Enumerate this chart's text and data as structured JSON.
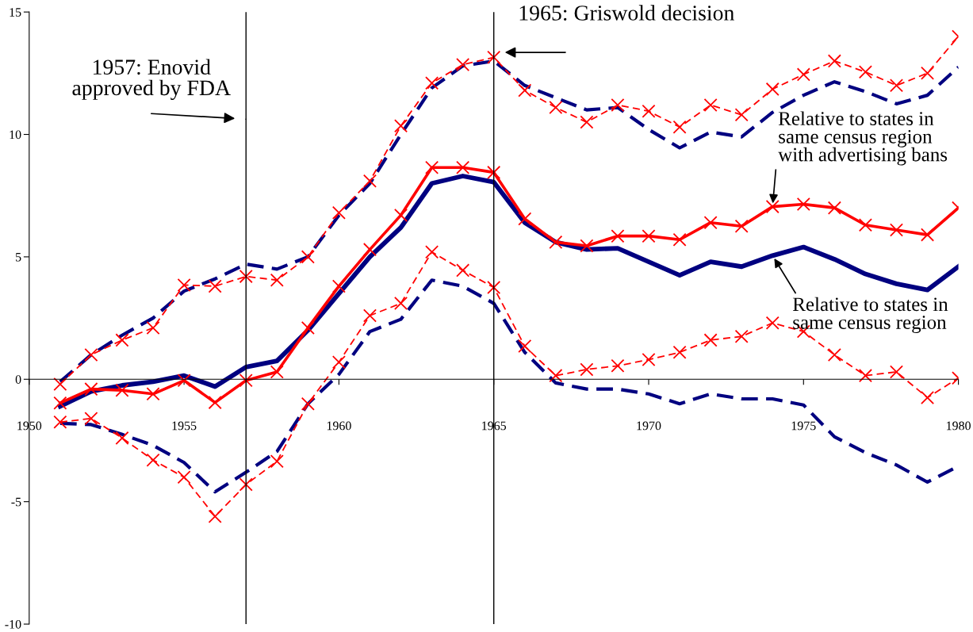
{
  "chart_data": {
    "type": "line",
    "x": [
      1951,
      1952,
      1953,
      1954,
      1955,
      1956,
      1957,
      1958,
      1959,
      1960,
      1961,
      1962,
      1963,
      1964,
      1965,
      1966,
      1967,
      1968,
      1969,
      1970,
      1971,
      1972,
      1973,
      1974,
      1975,
      1976,
      1977,
      1978,
      1979,
      1980
    ],
    "series": [
      {
        "color": "#000080",
        "line_style": "dashed",
        "marker": "none",
        "values": [
          -0.1,
          1.0,
          1.8,
          2.5,
          3.6,
          4.1,
          4.7,
          4.5,
          5.0,
          6.7,
          8.0,
          10.0,
          11.9,
          12.8,
          13.0,
          12.0,
          11.5,
          11.0,
          11.1,
          10.2,
          9.45,
          10.1,
          9.9,
          10.9,
          11.6,
          12.15,
          11.75,
          11.25,
          11.6,
          12.75
        ]
      },
      {
        "color": "#ff0000",
        "line_style": "dashed",
        "marker": "cross",
        "values": [
          -0.2,
          1.0,
          1.6,
          2.1,
          3.85,
          3.8,
          4.2,
          4.05,
          5.0,
          6.8,
          8.1,
          10.35,
          12.1,
          12.85,
          13.15,
          11.8,
          11.1,
          10.5,
          11.2,
          10.95,
          10.3,
          11.2,
          10.8,
          11.85,
          12.45,
          13.0,
          12.55,
          12.0,
          12.5,
          14.0
        ]
      },
      {
        "color": "#000080",
        "line_style": "solid",
        "marker": "none",
        "values": [
          -1.1,
          -0.5,
          -0.25,
          -0.1,
          0.15,
          -0.3,
          0.5,
          0.75,
          2.0,
          3.5,
          5.0,
          6.2,
          8.0,
          8.3,
          8.05,
          6.4,
          5.6,
          5.3,
          5.35,
          4.8,
          4.25,
          4.8,
          4.6,
          5.05,
          5.4,
          4.9,
          4.3,
          3.9,
          3.65,
          4.6
        ]
      },
      {
        "color": "#ff0000",
        "line_style": "solid",
        "marker": "cross",
        "values": [
          -0.97,
          -0.4,
          -0.45,
          -0.6,
          -0.05,
          -0.95,
          -0.05,
          0.3,
          2.1,
          3.8,
          5.3,
          6.7,
          8.65,
          8.65,
          8.45,
          6.55,
          5.6,
          5.45,
          5.85,
          5.85,
          5.7,
          6.4,
          6.25,
          7.05,
          7.15,
          7.0,
          6.3,
          6.1,
          5.9,
          7.0
        ]
      },
      {
        "color": "#000080",
        "line_style": "dashed",
        "marker": "none",
        "values": [
          -1.8,
          -1.85,
          -2.25,
          -2.7,
          -3.4,
          -4.6,
          -3.8,
          -2.95,
          -1.0,
          0.2,
          1.95,
          2.45,
          4.05,
          3.8,
          3.1,
          1.1,
          -0.15,
          -0.4,
          -0.4,
          -0.6,
          -1.0,
          -0.6,
          -0.8,
          -0.8,
          -1.05,
          -2.35,
          -3.0,
          -3.5,
          -4.2,
          -3.55
        ]
      },
      {
        "color": "#ff0000",
        "line_style": "dashed",
        "marker": "cross",
        "values": [
          -1.75,
          -1.6,
          -2.4,
          -3.3,
          -4.0,
          -5.6,
          -4.3,
          -3.35,
          -1.0,
          0.7,
          2.6,
          3.1,
          5.2,
          4.45,
          3.75,
          1.35,
          0.15,
          0.4,
          0.55,
          0.8,
          1.1,
          1.6,
          1.75,
          2.3,
          1.95,
          1.0,
          0.15,
          0.3,
          -0.75,
          0.05
        ]
      }
    ],
    "xlim": [
      1950,
      1980
    ],
    "xticks": [
      1950,
      1955,
      1960,
      1965,
      1970,
      1975,
      1980
    ],
    "ylim": [
      -10,
      15
    ],
    "yticks": [
      -10,
      -5,
      0,
      5,
      10,
      15
    ],
    "grid": false,
    "legend": false,
    "ref_lines": [
      {
        "axis": "x",
        "value": 1957,
        "label": "1957: Enovid\napproved by FDA",
        "color": "#000000"
      },
      {
        "axis": "x",
        "value": 1965,
        "label": "1965: Griswold decision",
        "color": "#000000"
      }
    ],
    "annotations": [
      {
        "text": "Relative to states in\nsame census region\nwith advertising bans",
        "x": 1974,
        "y": 7.05
      },
      {
        "text": "Relative to states in\nsame census region",
        "x": 1974,
        "y": 5.05
      }
    ]
  }
}
